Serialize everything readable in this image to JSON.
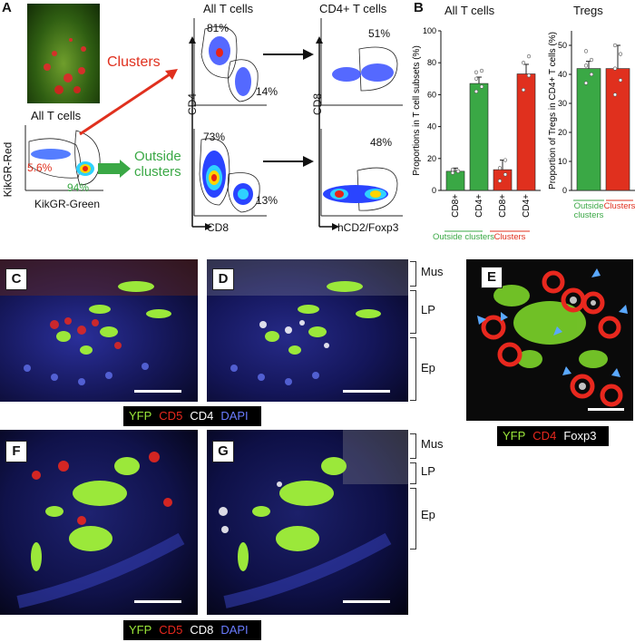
{
  "panels": {
    "A": {
      "letter": "A",
      "clusters_label": "Clusters",
      "outside_label": "Outside clusters",
      "entry_plot": {
        "title": "All T cells",
        "xlabel": "KikGR-Green",
        "ylabel": "KikGR-Red",
        "gate_red_pct": "5.6%",
        "gate_green_pct": "94%"
      },
      "cd4cd8_top": {
        "title": "All T cells",
        "ylabel": "CD4",
        "pct_cd4": "81%",
        "pct_cd8": "14%"
      },
      "cd4cd8_bottom": {
        "pct_cd4": "73%",
        "pct_cd8": "13%",
        "xlabel": "CD8"
      },
      "foxp3_top": {
        "title": "CD4+ T cells",
        "ylabel": "CD8",
        "pct": "51%"
      },
      "foxp3_bottom": {
        "pct": "48%",
        "xlabel": "hCD2/Foxp3"
      }
    },
    "B": {
      "letter": "B",
      "title_left": "All T cells",
      "title_right": "Tregs"
    },
    "C": {
      "letter": "C"
    },
    "D": {
      "letter": "D"
    },
    "E": {
      "letter": "E"
    },
    "F": {
      "letter": "F"
    },
    "G": {
      "letter": "G"
    }
  },
  "legend_cd4": {
    "yfp": "YFP",
    "cd5": "CD5",
    "cd4": "CD4",
    "dapi": "DAPI"
  },
  "legend_foxp3": {
    "yfp": "YFP",
    "cd4": "CD4",
    "foxp3": "Foxp3"
  },
  "legend_cd8": {
    "yfp": "YFP",
    "cd5": "CD5",
    "cd8": "CD8",
    "dapi": "DAPI"
  },
  "tissue_top": {
    "mus": "Mus",
    "lp": "LP",
    "ep": "Ep"
  },
  "tissue_bottom": {
    "mus": "Mus",
    "lp": "LP",
    "ep": "Ep"
  },
  "colors": {
    "green": "#3aa845",
    "red": "#e0301e",
    "yfp": "#9be83a",
    "cd5": "#e8281e",
    "dapi": "#6a7cff"
  },
  "chart_data": [
    {
      "type": "bar",
      "title": "All T cells",
      "ylabel": "Proportions in T cell subsets (%)",
      "ylim": [
        0,
        100
      ],
      "yticks": [
        0,
        20,
        40,
        60,
        80,
        100
      ],
      "categories": [
        "CD8+",
        "CD4+",
        "CD8+",
        "CD4+"
      ],
      "groups": [
        "Outside clusters",
        "Clusters"
      ],
      "values": [
        12,
        67,
        13,
        73
      ],
      "errors": [
        2,
        4,
        6,
        6
      ],
      "points": [
        [
          11,
          12,
          13,
          12,
          13
        ],
        [
          62,
          65,
          70,
          75,
          74
        ],
        [
          6,
          10,
          14,
          19
        ],
        [
          63,
          72,
          80,
          84
        ]
      ],
      "legend": "none"
    },
    {
      "type": "bar",
      "title": "Tregs",
      "ylabel": "Proportion of Tregs in CD4+ T cells (%)",
      "ylim": [
        0,
        55
      ],
      "yticks": [
        0,
        10,
        20,
        30,
        40,
        50
      ],
      "categories": [
        "Outside clusters",
        "Clusters"
      ],
      "values": [
        42,
        42
      ],
      "errors": [
        2.5,
        8
      ],
      "points": [
        [
          37,
          40,
          43,
          45,
          48
        ],
        [
          33,
          38,
          42,
          47,
          50
        ]
      ],
      "legend": "none"
    }
  ]
}
